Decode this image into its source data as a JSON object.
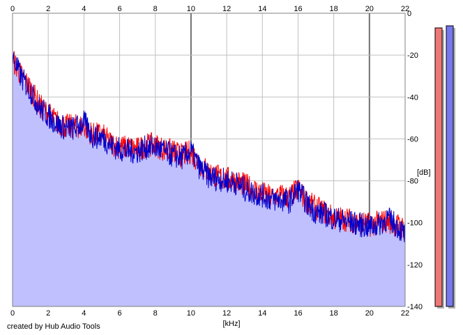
{
  "chart_data": {
    "type": "area",
    "x_label": "[kHz]",
    "y_label": "[dB]",
    "xlim": [
      0,
      22
    ],
    "ylim": [
      -140,
      0
    ],
    "x_ticks": [
      0,
      2,
      4,
      6,
      8,
      10,
      12,
      14,
      16,
      18,
      20,
      22
    ],
    "y_ticks": [
      0,
      -20,
      -40,
      -60,
      -80,
      -100,
      -120,
      -140
    ],
    "grid": true,
    "series": [
      {
        "color": "#ff0000",
        "x": [
          0,
          0.5,
          1,
          1.5,
          2,
          2.5,
          3,
          3.5,
          4,
          4.5,
          5,
          5.5,
          6,
          6.5,
          7,
          7.5,
          8,
          8.5,
          9,
          9.5,
          10,
          10.5,
          11,
          11.5,
          12,
          12.5,
          13,
          13.5,
          14,
          14.5,
          15,
          15.5,
          16,
          16.5,
          17,
          17.5,
          18,
          18.5,
          19,
          19.5,
          20,
          20.5,
          21,
          21.5,
          22
        ],
        "values": [
          -22,
          -30,
          -36,
          -44,
          -48,
          -52,
          -54,
          -54,
          -54,
          -58,
          -58,
          -62,
          -64,
          -64,
          -65,
          -63,
          -63,
          -65,
          -66,
          -68,
          -66,
          -72,
          -76,
          -78,
          -79,
          -80,
          -82,
          -84,
          -86,
          -88,
          -87,
          -88,
          -84,
          -90,
          -93,
          -95,
          -98,
          -98,
          -99,
          -100,
          -101,
          -100,
          -99,
          -101,
          -103
        ]
      },
      {
        "color": "#0000cc",
        "x": [
          0,
          0.5,
          1,
          1.5,
          2,
          2.5,
          3,
          3.5,
          4,
          4.5,
          5,
          5.5,
          6,
          6.5,
          7,
          7.5,
          8,
          8.5,
          9,
          9.5,
          10,
          10.5,
          11,
          11.5,
          12,
          12.5,
          13,
          13.5,
          14,
          14.5,
          15,
          15.5,
          16,
          16.5,
          17,
          17.5,
          18,
          18.5,
          19,
          19.5,
          20,
          20.5,
          21,
          21.5,
          22
        ],
        "values": [
          -21,
          -31,
          -37,
          -45,
          -49,
          -53,
          -55,
          -55,
          -52,
          -59,
          -59,
          -63,
          -65,
          -66,
          -66,
          -64,
          -64,
          -66,
          -68,
          -69,
          -66,
          -74,
          -78,
          -79,
          -80,
          -81,
          -84,
          -86,
          -87,
          -89,
          -89,
          -90,
          -84,
          -91,
          -95,
          -96,
          -98,
          -99,
          -100,
          -101,
          -102,
          -101,
          -98,
          -101,
          -106
        ]
      }
    ],
    "fill_color": "#c0c0ff",
    "level_meters": [
      {
        "channel": "left",
        "color": "#ee7777",
        "level_db": -7
      },
      {
        "channel": "right",
        "color": "#7777ee",
        "level_db": -6
      }
    ]
  },
  "footer": {
    "credit": "created by Hub Audio Tools"
  }
}
